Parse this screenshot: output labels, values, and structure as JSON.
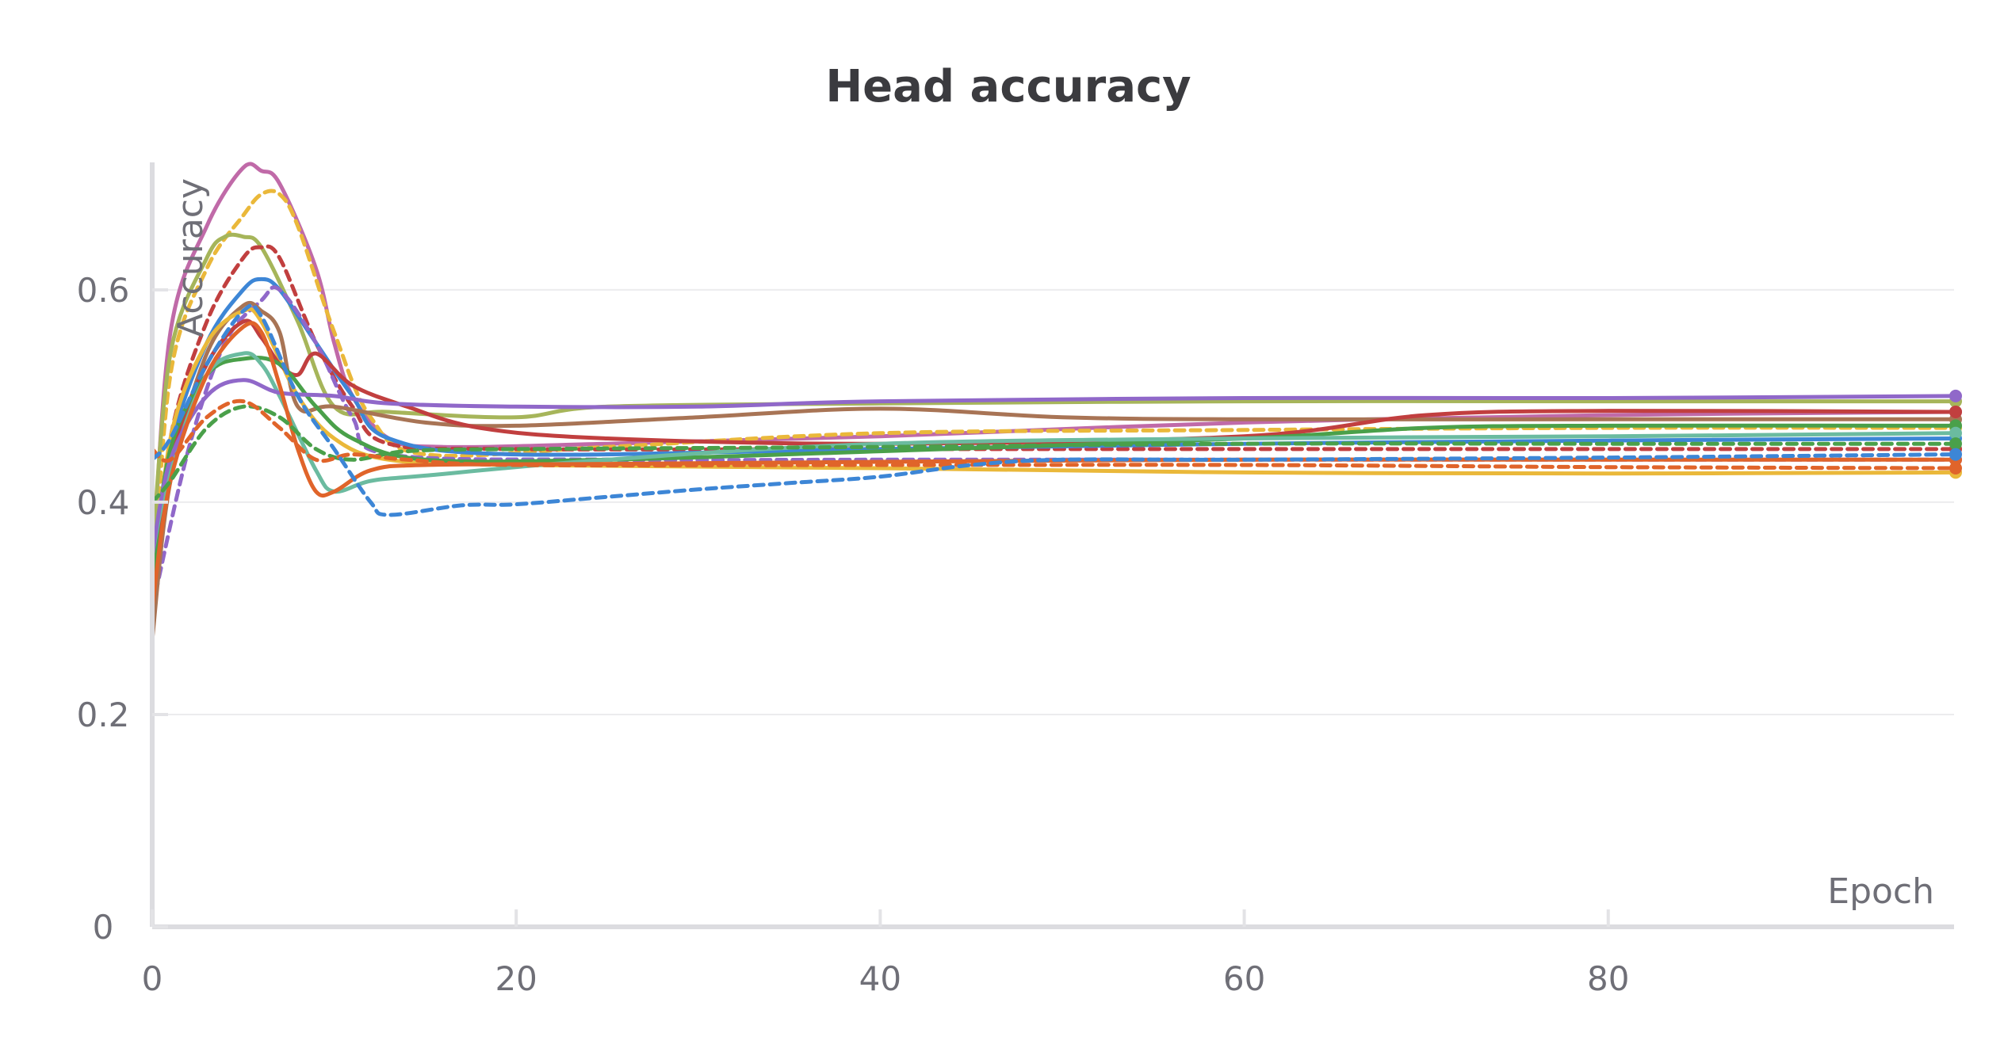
{
  "chart_data": {
    "type": "line",
    "title": "Head accuracy",
    "xlabel": "Epoch",
    "ylabel": "Accuracy",
    "xlim": [
      0,
      99
    ],
    "ylim": [
      0,
      0.72
    ],
    "xticks": [
      0,
      20,
      40,
      60,
      80
    ],
    "yticks": [
      0,
      0.2,
      0.4,
      0.6
    ],
    "ytick_labels": [
      "0",
      "0.2",
      "0.4",
      "0.6"
    ],
    "grid": true,
    "legend": "none",
    "series": [
      {
        "color": "#c06aa8",
        "dash": false,
        "points": [
          [
            0,
            0.33
          ],
          [
            1,
            0.56
          ],
          [
            3,
            0.66
          ],
          [
            5,
            0.715
          ],
          [
            6,
            0.712
          ],
          [
            7,
            0.7
          ],
          [
            9,
            0.62
          ],
          [
            10,
            0.55
          ],
          [
            11,
            0.5
          ],
          [
            13,
            0.46
          ],
          [
            16,
            0.452
          ],
          [
            25,
            0.455
          ],
          [
            40,
            0.462
          ],
          [
            60,
            0.475
          ],
          [
            80,
            0.482
          ],
          [
            99,
            0.485
          ]
        ]
      },
      {
        "color": "#eab83a",
        "dash": true,
        "points": [
          [
            0,
            0.3
          ],
          [
            1,
            0.52
          ],
          [
            3,
            0.62
          ],
          [
            5,
            0.67
          ],
          [
            6,
            0.69
          ],
          [
            7,
            0.69
          ],
          [
            8,
            0.66
          ],
          [
            10,
            0.56
          ],
          [
            12,
            0.48
          ],
          [
            15,
            0.445
          ],
          [
            25,
            0.452
          ],
          [
            40,
            0.465
          ],
          [
            60,
            0.468
          ],
          [
            80,
            0.47
          ],
          [
            99,
            0.47
          ]
        ]
      },
      {
        "color": "#a6b55a",
        "dash": false,
        "points": [
          [
            0,
            0.35
          ],
          [
            1,
            0.54
          ],
          [
            3,
            0.63
          ],
          [
            4,
            0.65
          ],
          [
            5,
            0.65
          ],
          [
            6,
            0.64
          ],
          [
            8,
            0.57
          ],
          [
            10,
            0.49
          ],
          [
            13,
            0.485
          ],
          [
            20,
            0.48
          ],
          [
            25,
            0.49
          ],
          [
            40,
            0.493
          ],
          [
            60,
            0.495
          ],
          [
            80,
            0.495
          ],
          [
            99,
            0.495
          ]
        ]
      },
      {
        "color": "#c13f3f",
        "dash": true,
        "points": [
          [
            0,
            0.3
          ],
          [
            1,
            0.46
          ],
          [
            3,
            0.57
          ],
          [
            5,
            0.63
          ],
          [
            6,
            0.64
          ],
          [
            7,
            0.63
          ],
          [
            9,
            0.55
          ],
          [
            11,
            0.49
          ],
          [
            13,
            0.455
          ],
          [
            20,
            0.45
          ],
          [
            40,
            0.45
          ],
          [
            60,
            0.45
          ],
          [
            80,
            0.45
          ],
          [
            99,
            0.45
          ]
        ]
      },
      {
        "color": "#3d86d6",
        "dash": false,
        "points": [
          [
            0,
            0.32
          ],
          [
            1,
            0.45
          ],
          [
            3,
            0.55
          ],
          [
            5,
            0.6
          ],
          [
            6,
            0.61
          ],
          [
            7,
            0.6
          ],
          [
            9,
            0.55
          ],
          [
            11,
            0.5
          ],
          [
            13,
            0.46
          ],
          [
            20,
            0.445
          ],
          [
            40,
            0.45
          ],
          [
            60,
            0.455
          ],
          [
            80,
            0.458
          ],
          [
            99,
            0.46
          ]
        ]
      },
      {
        "color": "#9068c9",
        "dash": true,
        "points": [
          [
            0,
            0.3
          ],
          [
            2,
            0.45
          ],
          [
            4,
            0.55
          ],
          [
            6,
            0.59
          ],
          [
            7,
            0.6
          ],
          [
            9,
            0.55
          ],
          [
            11,
            0.48
          ],
          [
            13,
            0.445
          ],
          [
            25,
            0.44
          ],
          [
            40,
            0.44
          ],
          [
            60,
            0.44
          ],
          [
            80,
            0.44
          ],
          [
            99,
            0.44
          ]
        ]
      },
      {
        "color": "#a87455",
        "dash": false,
        "points": [
          [
            0,
            0.27
          ],
          [
            1,
            0.42
          ],
          [
            3,
            0.54
          ],
          [
            5,
            0.585
          ],
          [
            6,
            0.58
          ],
          [
            7,
            0.56
          ],
          [
            8,
            0.49
          ],
          [
            10,
            0.49
          ],
          [
            15,
            0.475
          ],
          [
            20,
            0.472
          ],
          [
            30,
            0.48
          ],
          [
            40,
            0.488
          ],
          [
            50,
            0.48
          ],
          [
            60,
            0.478
          ],
          [
            80,
            0.478
          ],
          [
            99,
            0.478
          ]
        ]
      },
      {
        "color": "#eab83a",
        "dash": false,
        "points": [
          [
            0,
            0.3
          ],
          [
            1,
            0.46
          ],
          [
            3,
            0.55
          ],
          [
            5,
            0.58
          ],
          [
            6,
            0.57
          ],
          [
            8,
            0.5
          ],
          [
            10,
            0.46
          ],
          [
            13,
            0.44
          ],
          [
            20,
            0.435
          ],
          [
            40,
            0.432
          ],
          [
            60,
            0.428
          ],
          [
            80,
            0.427
          ],
          [
            99,
            0.428
          ]
        ]
      },
      {
        "color": "#c13f3f",
        "dash": false,
        "points": [
          [
            0,
            0.31
          ],
          [
            1,
            0.44
          ],
          [
            3,
            0.53
          ],
          [
            5,
            0.57
          ],
          [
            6,
            0.555
          ],
          [
            7,
            0.53
          ],
          [
            8,
            0.52
          ],
          [
            9,
            0.54
          ],
          [
            11,
            0.51
          ],
          [
            14,
            0.49
          ],
          [
            18,
            0.47
          ],
          [
            25,
            0.46
          ],
          [
            40,
            0.455
          ],
          [
            60,
            0.462
          ],
          [
            70,
            0.482
          ],
          [
            80,
            0.486
          ],
          [
            99,
            0.485
          ]
        ]
      },
      {
        "color": "#4aa04a",
        "dash": false,
        "points": [
          [
            0,
            0.33
          ],
          [
            1,
            0.45
          ],
          [
            3,
            0.52
          ],
          [
            5,
            0.535
          ],
          [
            7,
            0.53
          ],
          [
            9,
            0.49
          ],
          [
            11,
            0.46
          ],
          [
            15,
            0.44
          ],
          [
            25,
            0.44
          ],
          [
            40,
            0.448
          ],
          [
            60,
            0.46
          ],
          [
            70,
            0.47
          ],
          [
            80,
            0.472
          ],
          [
            99,
            0.472
          ]
        ]
      },
      {
        "color": "#6bbba0",
        "dash": false,
        "points": [
          [
            0,
            0.35
          ],
          [
            1,
            0.43
          ],
          [
            3,
            0.52
          ],
          [
            5,
            0.54
          ],
          [
            6,
            0.53
          ],
          [
            7,
            0.5
          ],
          [
            9,
            0.43
          ],
          [
            10,
            0.41
          ],
          [
            12,
            0.42
          ],
          [
            15,
            0.425
          ],
          [
            25,
            0.44
          ],
          [
            40,
            0.455
          ],
          [
            60,
            0.46
          ],
          [
            80,
            0.462
          ],
          [
            99,
            0.465
          ]
        ]
      },
      {
        "color": "#9068c9",
        "dash": false,
        "points": [
          [
            0,
            0.35
          ],
          [
            1,
            0.44
          ],
          [
            3,
            0.5
          ],
          [
            5,
            0.515
          ],
          [
            7,
            0.503
          ],
          [
            10,
            0.5
          ],
          [
            13,
            0.493
          ],
          [
            20,
            0.49
          ],
          [
            30,
            0.49
          ],
          [
            40,
            0.495
          ],
          [
            60,
            0.498
          ],
          [
            80,
            0.498
          ],
          [
            99,
            0.5
          ]
        ]
      },
      {
        "color": "#e0642a",
        "dash": false,
        "points": [
          [
            0,
            0.3
          ],
          [
            1,
            0.42
          ],
          [
            3,
            0.52
          ],
          [
            5,
            0.565
          ],
          [
            6,
            0.56
          ],
          [
            7,
            0.51
          ],
          [
            8,
            0.45
          ],
          [
            9,
            0.41
          ],
          [
            10,
            0.41
          ],
          [
            12,
            0.43
          ],
          [
            15,
            0.435
          ],
          [
            25,
            0.436
          ],
          [
            40,
            0.438
          ],
          [
            60,
            0.44
          ],
          [
            80,
            0.44
          ],
          [
            99,
            0.44
          ]
        ]
      },
      {
        "color": "#4aa04a",
        "dash": true,
        "points": [
          [
            0,
            0.4
          ],
          [
            1,
            0.42
          ],
          [
            3,
            0.47
          ],
          [
            5,
            0.49
          ],
          [
            7,
            0.48
          ],
          [
            9,
            0.45
          ],
          [
            11,
            0.44
          ],
          [
            14,
            0.448
          ],
          [
            20,
            0.45
          ],
          [
            40,
            0.452
          ],
          [
            60,
            0.455
          ],
          [
            80,
            0.455
          ],
          [
            99,
            0.455
          ]
        ]
      },
      {
        "color": "#e0642a",
        "dash": true,
        "points": [
          [
            0,
            0.45
          ],
          [
            1,
            0.44
          ],
          [
            3,
            0.48
          ],
          [
            5,
            0.495
          ],
          [
            7,
            0.47
          ],
          [
            9,
            0.44
          ],
          [
            11,
            0.445
          ],
          [
            14,
            0.44
          ],
          [
            20,
            0.435
          ],
          [
            40,
            0.435
          ],
          [
            60,
            0.435
          ],
          [
            80,
            0.433
          ],
          [
            99,
            0.432
          ]
        ]
      },
      {
        "color": "#3d86d6",
        "dash": true,
        "points": [
          [
            0,
            0.44
          ],
          [
            1,
            0.46
          ],
          [
            3,
            0.53
          ],
          [
            5,
            0.58
          ],
          [
            6,
            0.575
          ],
          [
            8,
            0.5
          ],
          [
            10,
            0.45
          ],
          [
            12,
            0.4
          ],
          [
            13,
            0.388
          ],
          [
            17,
            0.397
          ],
          [
            20,
            0.398
          ],
          [
            25,
            0.405
          ],
          [
            30,
            0.412
          ],
          [
            35,
            0.418
          ],
          [
            40,
            0.424
          ],
          [
            45,
            0.435
          ],
          [
            50,
            0.44
          ],
          [
            60,
            0.44
          ],
          [
            80,
            0.442
          ],
          [
            99,
            0.445
          ]
        ]
      }
    ]
  }
}
